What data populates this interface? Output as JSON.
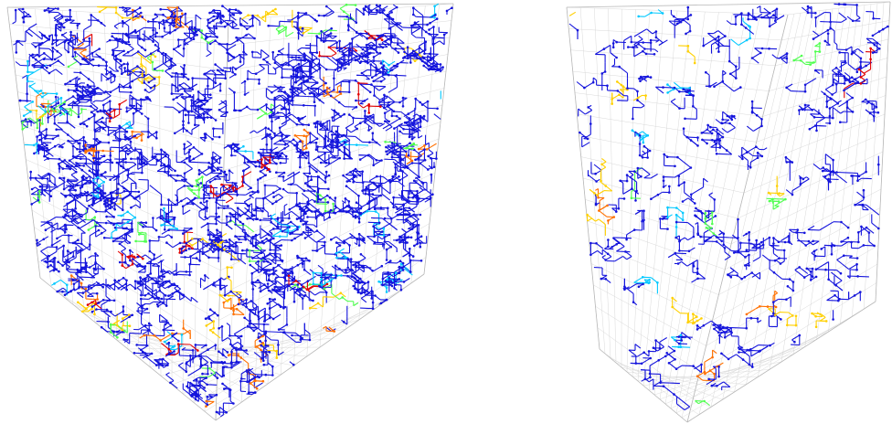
{
  "figure": {
    "panels": [
      {
        "id": "dense-network",
        "network_density": "high",
        "dominant_color": "#1414dc"
      },
      {
        "id": "sparse-network",
        "network_density": "low",
        "dominant_color": "#1414dc"
      }
    ],
    "colors": {
      "background": "#ffffff",
      "grid": "#cfcfcf",
      "edge": "#b8b8b8",
      "network_main": "#1414dc",
      "colormap": [
        "#1414dc",
        "#00c8ff",
        "#50ff50",
        "#ffd000",
        "#ff7000",
        "#e00000"
      ]
    }
  }
}
